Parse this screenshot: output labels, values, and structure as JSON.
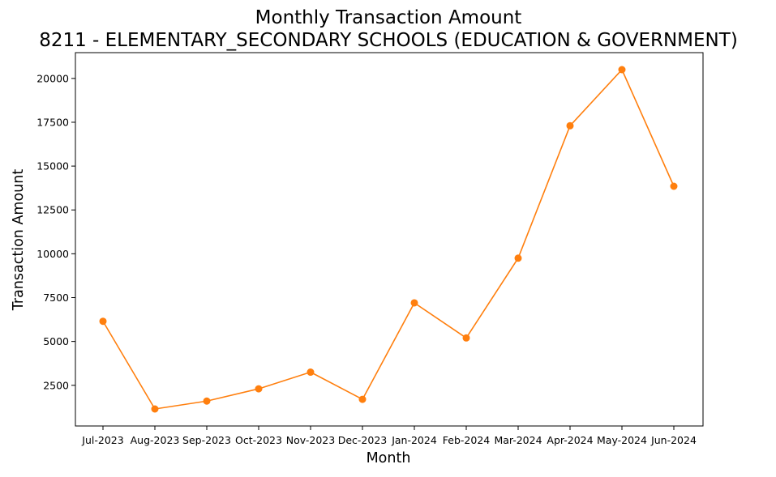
{
  "chart_data": {
    "type": "line",
    "title": "Monthly Transaction Amount",
    "subtitle": "8211 - ELEMENTARY_SECONDARY SCHOOLS (EDUCATION & GOVERNMENT)",
    "xlabel": "Month",
    "ylabel": "Transaction Amount",
    "categories": [
      "Jul-2023",
      "Aug-2023",
      "Sep-2023",
      "Oct-2023",
      "Nov-2023",
      "Dec-2023",
      "Jan-2024",
      "Feb-2024",
      "Mar-2024",
      "Apr-2024",
      "May-2024",
      "Jun-2024"
    ],
    "series": [
      {
        "values": [
          6150,
          1150,
          1600,
          2300,
          3250,
          1700,
          7200,
          5200,
          9750,
          17300,
          20500,
          13850
        ],
        "color": "#ff7f0e",
        "marker": "circle"
      }
    ],
    "yticks": [
      2500,
      5000,
      7500,
      10000,
      12500,
      15000,
      17500,
      20000
    ],
    "ytick_labels": [
      "2500",
      "5000",
      "7500",
      "10000",
      "12500",
      "15000",
      "17500",
      "20000"
    ],
    "ylim": [
      180,
      21470
    ],
    "grid": false,
    "legend": "none"
  }
}
